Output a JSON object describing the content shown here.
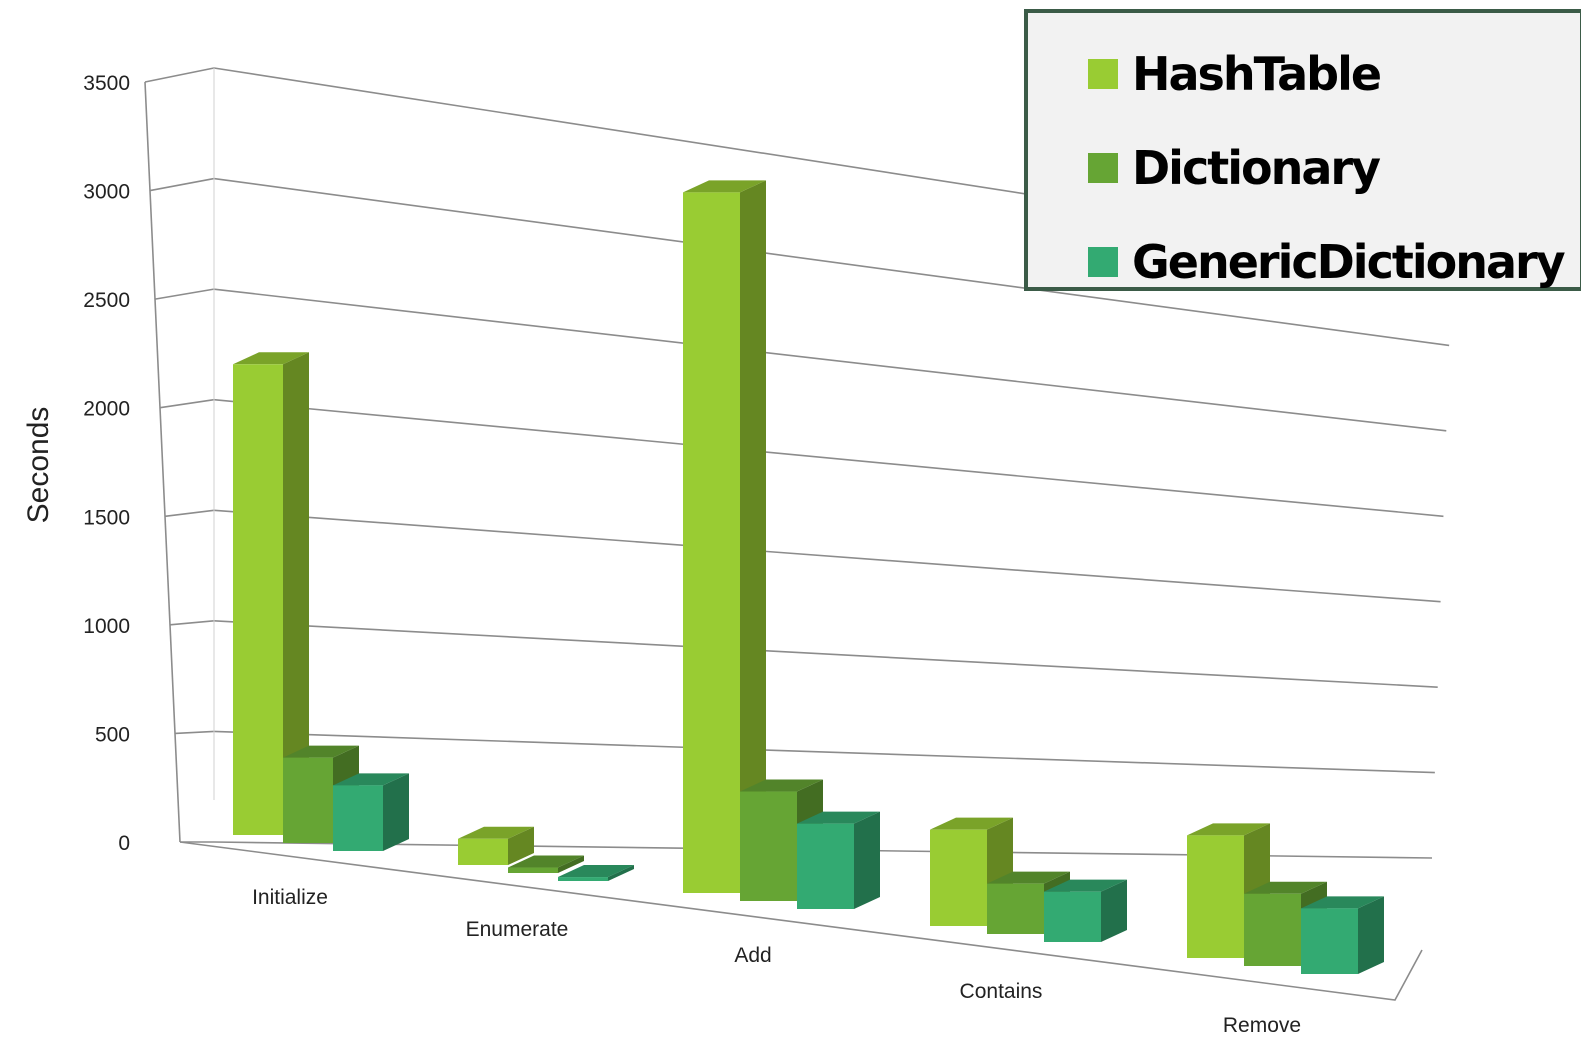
{
  "chart_data": {
    "type": "bar",
    "variant": "3d-clustered-column",
    "title": "",
    "xlabel": "",
    "ylabel": "Seconds",
    "ylim": [
      0,
      3500
    ],
    "yticks": [
      "0",
      "500",
      "1000",
      "1500",
      "2000",
      "2500",
      "3000",
      "3500"
    ],
    "categories": [
      "Initialize",
      "Enumerate",
      "Add",
      "Contains",
      "Remove"
    ],
    "series": [
      {
        "name": "HashTable",
        "values": [
          2150,
          120,
          3200,
          440,
          560
        ],
        "color": "#99cc33"
      },
      {
        "name": "Dictionary",
        "values": [
          390,
          25,
          500,
          230,
          330
        ],
        "color": "#66a534"
      },
      {
        "name": "GenericDictionary",
        "values": [
          300,
          18,
          390,
          230,
          300
        ],
        "color": "#33aa72"
      }
    ],
    "grid": true,
    "legend_position": "top-right"
  }
}
